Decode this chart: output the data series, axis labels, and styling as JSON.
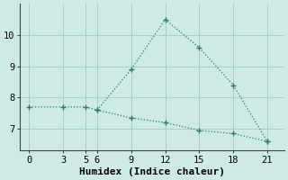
{
  "line1_x": [
    0,
    3,
    5,
    6,
    9,
    12,
    15,
    18,
    21
  ],
  "line1_y": [
    7.7,
    7.7,
    7.7,
    7.6,
    8.9,
    10.5,
    9.6,
    8.4,
    6.6
  ],
  "line2_x": [
    6,
    9,
    12,
    15,
    18,
    21
  ],
  "line2_y": [
    7.6,
    7.35,
    7.2,
    6.95,
    6.85,
    6.6
  ],
  "line_color": "#2e7d72",
  "bg_color": "#ceeae4",
  "grid_color": "#aacfc9",
  "xlabel": "Humidex (Indice chaleur)",
  "xticks": [
    0,
    3,
    5,
    6,
    9,
    12,
    15,
    18,
    21
  ],
  "yticks": [
    7,
    8,
    9,
    10
  ],
  "xlim": [
    -0.8,
    22.5
  ],
  "ylim": [
    6.3,
    11.0
  ],
  "xlabel_fontsize": 8,
  "tick_fontsize": 7.5,
  "marker": "+"
}
